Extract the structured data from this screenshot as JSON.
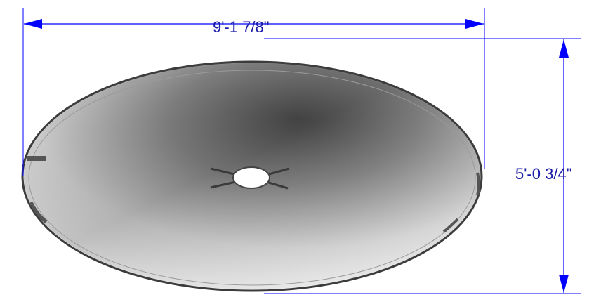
{
  "dimensions": {
    "width": {
      "label": "9'-1 7/8\""
    },
    "height": {
      "label": "5'-0 3/4\""
    }
  },
  "colors": {
    "dimension_line": "#0000ff",
    "dimension_text": "#1a1aa8",
    "dish_edge": "#3c3c3c",
    "dish_dark": "#4a4a4a",
    "dish_light": "#f4f4f4"
  },
  "icons": {
    "dimension_arrow": "arrowhead"
  }
}
